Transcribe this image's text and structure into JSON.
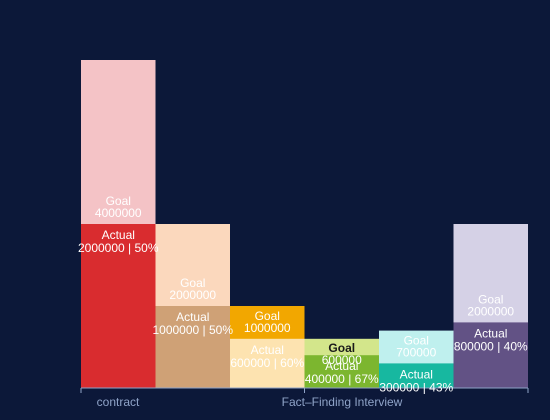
{
  "chart_data": {
    "type": "bar",
    "subtype": "goal-vs-actual overlapping columns",
    "x_tick_labels": [
      "contract",
      "Fact–Finding Interview"
    ],
    "ylim": [
      0,
      4000000
    ],
    "bars": [
      {
        "goal_label": "Goal",
        "goal": 4000000,
        "actual_label": "Actual",
        "actual": 2000000,
        "actual_text": "2000000 | 50%",
        "goal_color": "#f4c3c6",
        "actual_color": "#d92c2f"
      },
      {
        "goal_label": "Goal",
        "goal": 2000000,
        "actual_label": "Actual",
        "actual": 1000000,
        "actual_text": "1000000 | 50%",
        "goal_color": "#fbd8bd",
        "actual_color": "#cfa176"
      },
      {
        "goal_label": "Goal",
        "goal": 1000000,
        "actual_label": "Actual",
        "actual": 600000,
        "actual_text": "600000 | 60%",
        "goal_color": "#f2a700",
        "actual_color": "#fde3b0"
      },
      {
        "goal_label": "Goal",
        "goal": 600000,
        "actual_label": "Actual",
        "actual": 400000,
        "actual_text": "400000 | 67%",
        "goal_color": "#d3e68b",
        "actual_color": "#7cb62f"
      },
      {
        "goal_label": "Goal",
        "goal": 700000,
        "actual_label": "Actual",
        "actual": 300000,
        "actual_text": "300000 | 43%",
        "goal_color": "#bff0ee",
        "actual_color": "#17b8a0"
      },
      {
        "goal_label": "Goal",
        "goal": 2000000,
        "actual_label": "Actual",
        "actual": 800000,
        "actual_text": "800000 | 40%",
        "goal_color": "#d5d1e6",
        "actual_color": "#625285"
      }
    ],
    "grid": false,
    "legend": "none",
    "axis_color": "#8fa3c8",
    "background": "#0c1839"
  }
}
